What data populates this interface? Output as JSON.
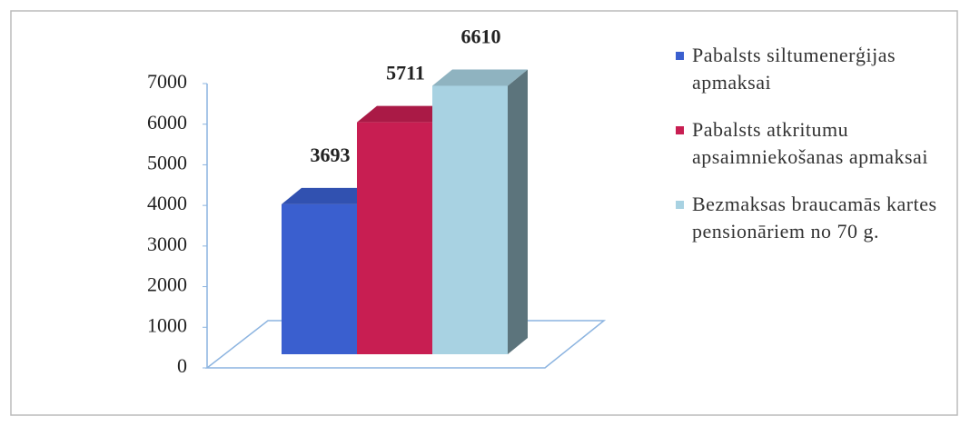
{
  "chart_data": {
    "type": "bar3d",
    "categories": [
      null
    ],
    "series": [
      {
        "name": "Pabalsts siltumenerģijas apmaksai",
        "color": "#3a5fcf",
        "values": [
          3693
        ]
      },
      {
        "name": "Pabalsts atkritumu apsaimniekošanas apmaksai",
        "color": "#c81e52",
        "values": [
          5711
        ]
      },
      {
        "name": "Bezmaksas braucamās kartes pensionāriem no 70 g.",
        "color": "#a8d2e2",
        "values": [
          6610
        ]
      }
    ],
    "ylim": [
      0,
      7000
    ],
    "yticks": [
      0,
      1000,
      2000,
      3000,
      4000,
      5000,
      6000,
      7000
    ],
    "grid": false,
    "legend": "right"
  }
}
